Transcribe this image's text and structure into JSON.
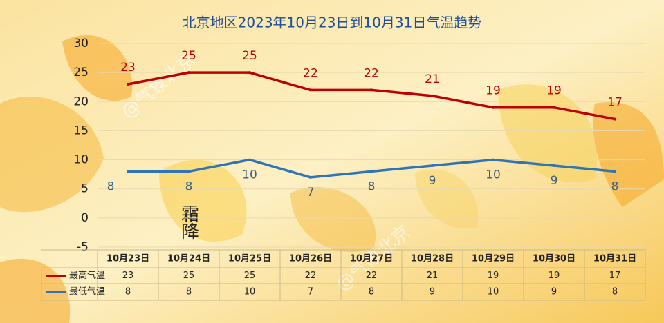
{
  "chart_data": {
    "type": "line",
    "title": "北京地区2023年10月23日到10月31日气温趋势",
    "categories": [
      "10月23日",
      "10月24日",
      "10月25日",
      "10月26日",
      "10月27日",
      "10月28日",
      "10月29日",
      "10月30日",
      "10月31日"
    ],
    "series": [
      {
        "name": "最高气温",
        "color": "#c00000",
        "values": [
          23,
          25,
          25,
          22,
          22,
          21,
          19,
          19,
          17
        ]
      },
      {
        "name": "最低气温",
        "color": "#2e75b6",
        "values": [
          8,
          8,
          10,
          7,
          8,
          9,
          10,
          9,
          8
        ]
      }
    ],
    "ylim": [
      -5,
      30
    ],
    "yticks": [
      -5,
      0,
      5,
      10,
      15,
      20,
      25,
      30
    ],
    "grid": true,
    "watermark": "@气象北京",
    "solar_term": "霜降"
  }
}
